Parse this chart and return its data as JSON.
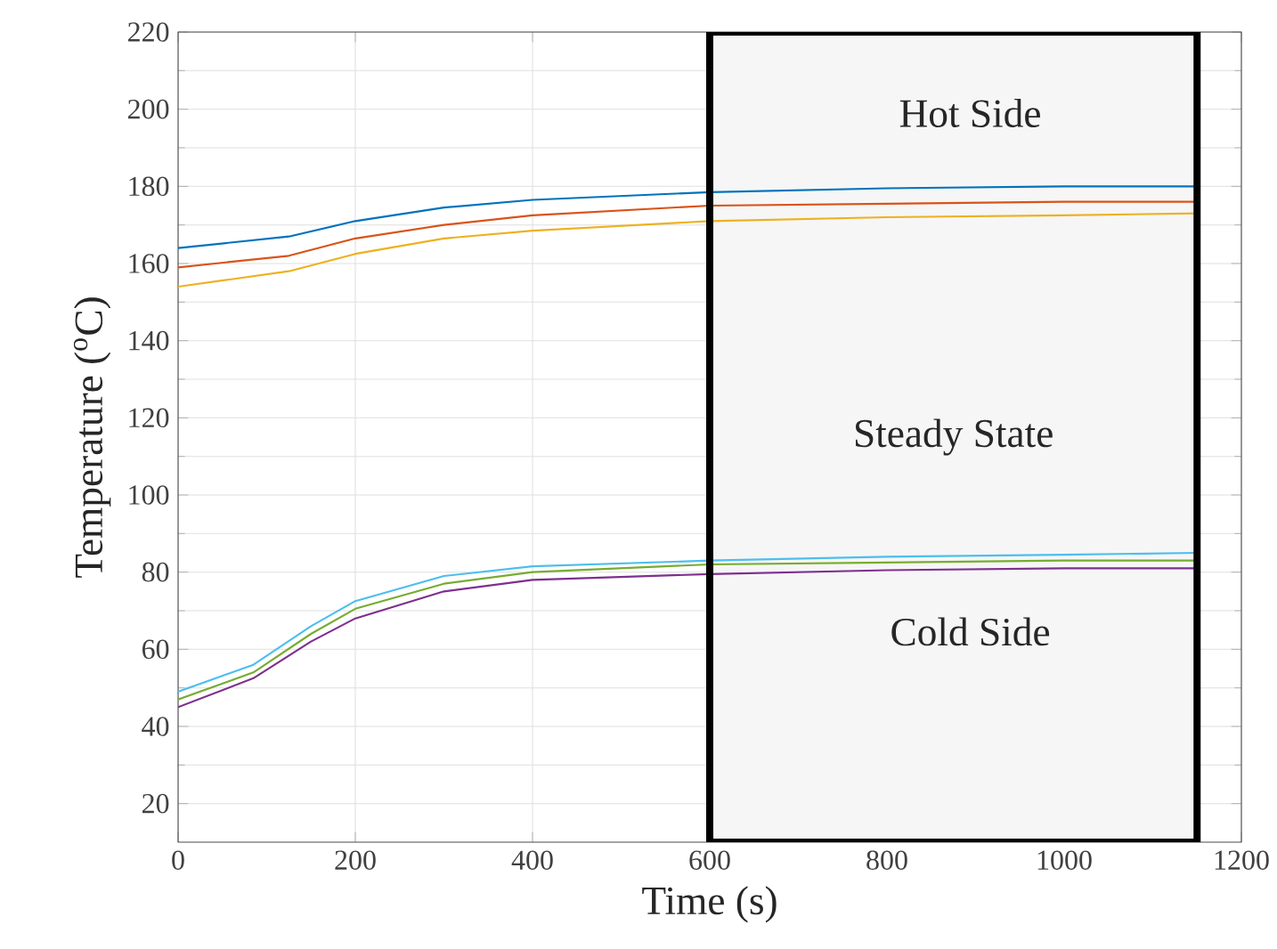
{
  "chart_data": {
    "type": "line",
    "xlabel": "Time (s)",
    "ylabel": "Temperature ($^{o}$C)",
    "xlim": [
      0,
      1200
    ],
    "ylim": [
      10,
      220
    ],
    "xticks": [
      0,
      200,
      400,
      600,
      800,
      1000,
      1200
    ],
    "yticks": [
      20,
      40,
      60,
      80,
      100,
      120,
      140,
      160,
      180,
      200,
      220
    ],
    "grid": true,
    "marker": "none",
    "line_style": "solid",
    "x": [
      0,
      125,
      200,
      300,
      400,
      600,
      800,
      1000,
      1150
    ],
    "series": [
      {
        "color": "#0072bd",
        "values": [
          164,
          167,
          171,
          174.5,
          176.5,
          178.5,
          179.5,
          180,
          180
        ]
      },
      {
        "color": "#d95319",
        "values": [
          159,
          162,
          166.5,
          170,
          172.5,
          175,
          175.5,
          176,
          176
        ]
      },
      {
        "color": "#edb120",
        "values": [
          154,
          158,
          162.5,
          166.5,
          168.5,
          171,
          172,
          172.5,
          173
        ]
      },
      {
        "color": "#4dbeee",
        "x": [
          0,
          85,
          150,
          200,
          300,
          400,
          600,
          800,
          1000,
          1150
        ],
        "values": [
          49,
          56,
          66,
          72.5,
          79,
          81.5,
          83,
          84,
          84.5,
          85
        ]
      },
      {
        "color": "#77ac30",
        "x": [
          0,
          85,
          150,
          200,
          300,
          400,
          600,
          800,
          1000,
          1150
        ],
        "values": [
          47,
          54,
          64,
          70.5,
          77,
          80,
          82,
          82.5,
          83,
          83
        ]
      },
      {
        "color": "#7e2f8e",
        "x": [
          0,
          85,
          150,
          200,
          300,
          400,
          600,
          800,
          1000,
          1150
        ],
        "values": [
          45,
          52.5,
          62,
          68,
          75,
          78,
          79.5,
          80.5,
          81,
          81
        ]
      }
    ],
    "bands": [
      {
        "axis": "x",
        "from": 600,
        "to": 1150,
        "label": "Steady State",
        "color": "#f6f6f6"
      }
    ],
    "annotations": [
      "Hot Side",
      "Cold Side"
    ]
  }
}
